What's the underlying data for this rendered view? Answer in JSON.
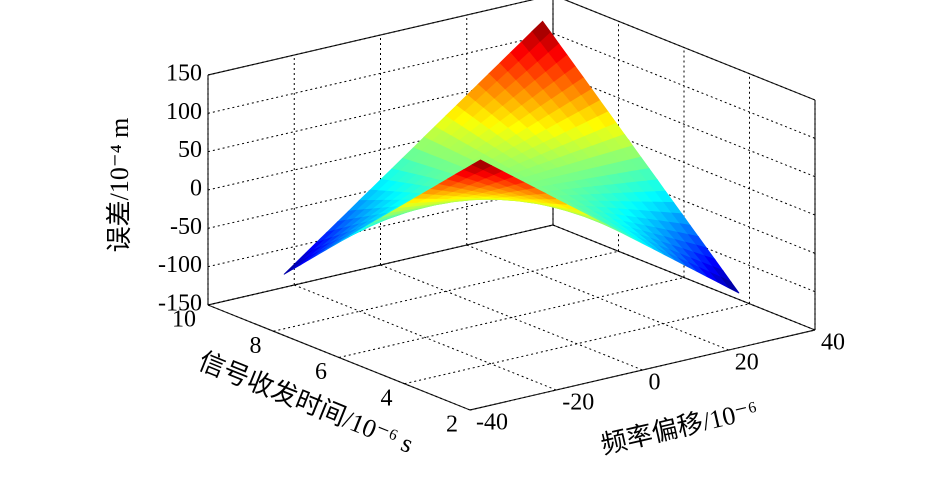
{
  "chart_data": {
    "type": "surface3d",
    "zlabel": "误差/10⁻⁴ m",
    "xlabel": "频率偏移/10⁻⁶",
    "ylabel": "信号收发时间/10⁻⁶ s",
    "x": [
      -30,
      -20,
      -10,
      0,
      10,
      20,
      30
    ],
    "y": [
      3,
      4,
      5,
      6,
      7,
      8,
      9
    ],
    "z": [
      [
        146,
        104,
        62,
        20,
        -22,
        -64,
        -106
      ],
      [
        104,
        76,
        48,
        20,
        -8,
        -36,
        -64
      ],
      [
        62,
        48,
        34,
        20,
        6,
        -8,
        -22
      ],
      [
        20,
        20,
        20,
        20,
        20,
        20,
        20
      ],
      [
        -22,
        -8,
        6,
        20,
        34,
        48,
        62
      ],
      [
        -64,
        -36,
        -8,
        20,
        48,
        76,
        104
      ],
      [
        -106,
        -64,
        -22,
        20,
        62,
        104,
        146
      ]
    ],
    "xlim": [
      -40,
      40
    ],
    "ylim": [
      2,
      10
    ],
    "zlim": [
      -150,
      150
    ],
    "xticks": [
      -40,
      -20,
      0,
      20,
      40
    ],
    "yticks": [
      2,
      4,
      6,
      8,
      10
    ],
    "zticks": [
      -150,
      -100,
      -50,
      0,
      50,
      100,
      150
    ],
    "colormap": "jet",
    "grid": true
  }
}
